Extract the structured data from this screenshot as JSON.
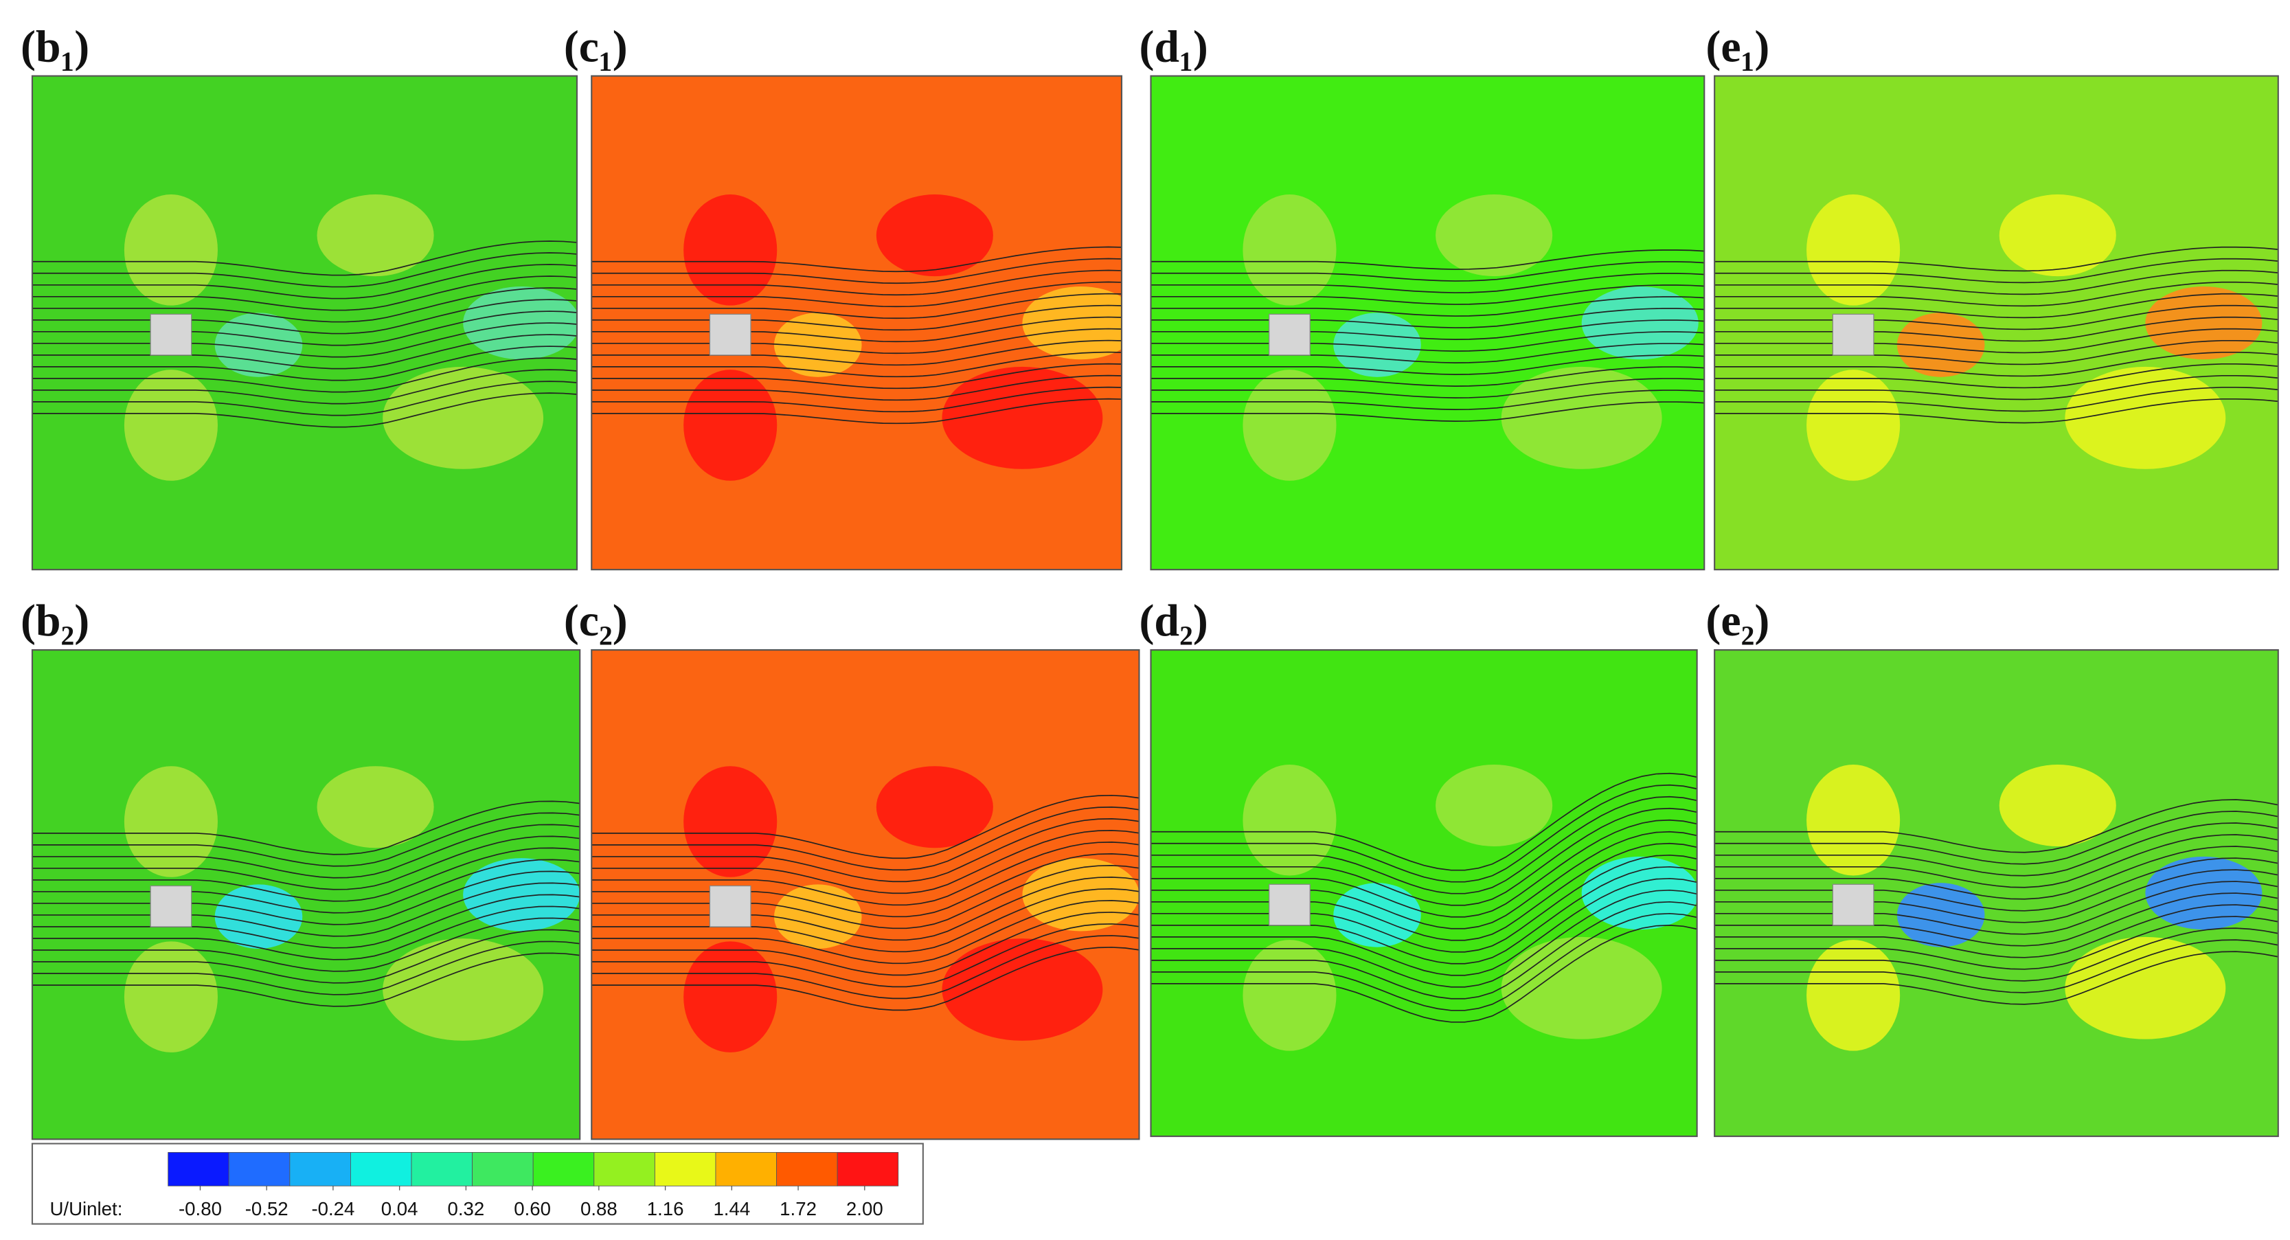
{
  "panels": [
    {
      "label": "(b₁)",
      "color": "#43d223"
    },
    {
      "label": "(c₁)",
      "color": "#fb6412"
    },
    {
      "label": "(d₁)",
      "color": "#41ec12"
    },
    {
      "label": "(e₁)",
      "color": "#86e025"
    },
    {
      "label": "(b₂)",
      "color": "#43d223"
    },
    {
      "label": "(c₂)",
      "color": "#fb6412"
    },
    {
      "label": "(d₂)",
      "color": "#41e412"
    },
    {
      "label": "(e₂)",
      "color": "#5fd82a"
    }
  ],
  "colorbar": {
    "label": "U/Uinlet:",
    "colors": [
      "#0a1aff",
      "#1f6cff",
      "#18b0f5",
      "#10f0e0",
      "#22f0a0",
      "#3ee860",
      "#3af020",
      "#94f020",
      "#e8f818",
      "#ffb000",
      "#ff5a00",
      "#ff1414"
    ],
    "ticks": [
      {
        "value": -0.8,
        "label": "-0.80"
      },
      {
        "value": -0.52,
        "label": "-0.52"
      },
      {
        "value": -0.24,
        "label": "-0.24"
      },
      {
        "value": 0.04,
        "label": "0.04"
      },
      {
        "value": 0.32,
        "label": "0.32"
      },
      {
        "value": 0.6,
        "label": "0.60"
      },
      {
        "value": 0.88,
        "label": "0.88"
      },
      {
        "value": 1.16,
        "label": "1.16"
      },
      {
        "value": 1.44,
        "label": "1.44"
      },
      {
        "value": 1.72,
        "label": "1.72"
      },
      {
        "value": 2.0,
        "label": "2.00"
      }
    ]
  }
}
